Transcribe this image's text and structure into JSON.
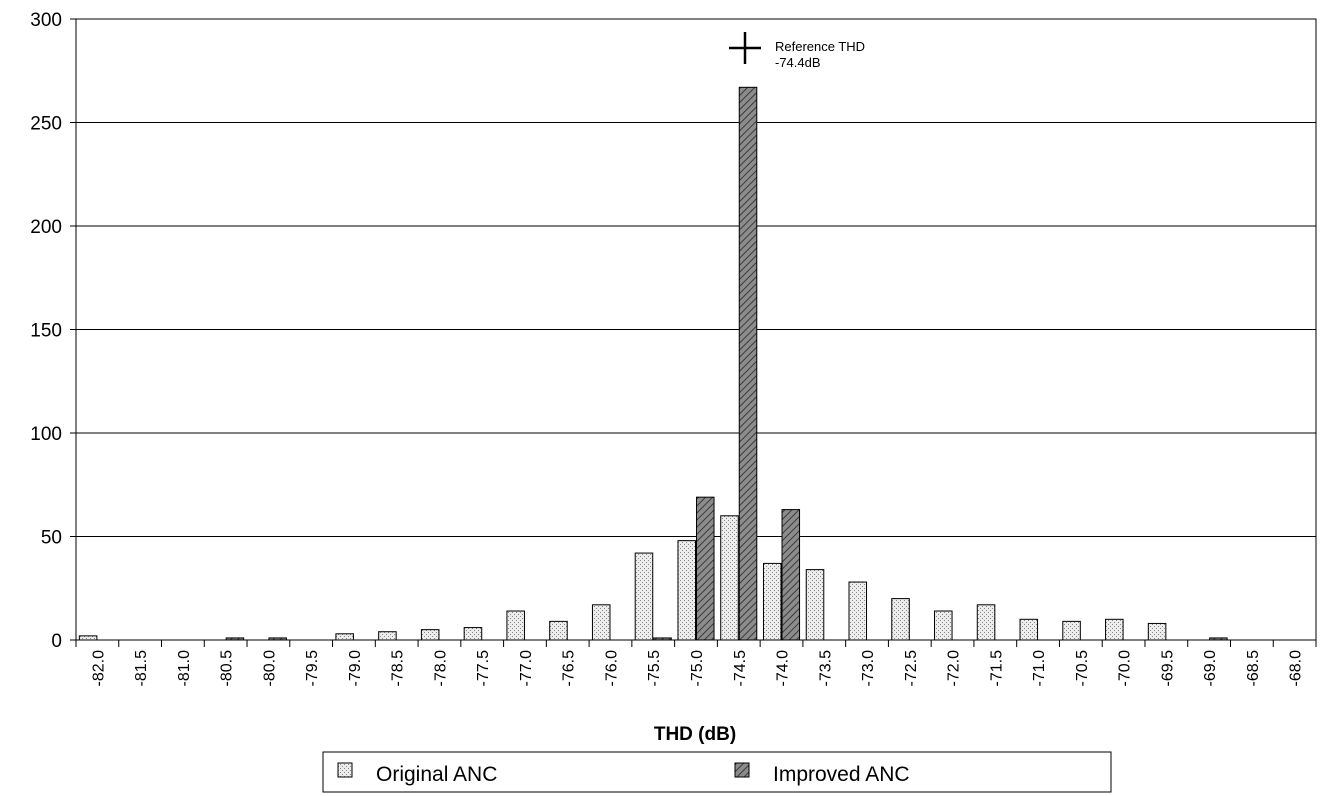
{
  "chart_data": {
    "type": "bar",
    "title": "",
    "xlabel": "THD (dB)",
    "ylabel": "",
    "ylim": [
      0,
      300
    ],
    "yticks": [
      0,
      50,
      100,
      150,
      200,
      250,
      300
    ],
    "grid": "horizontal",
    "legend_position": "bottom",
    "categories": [
      "-82.0",
      "-81.5",
      "-81.0",
      "-80.5",
      "-80.0",
      "-79.5",
      "-79.0",
      "-78.5",
      "-78.0",
      "-77.5",
      "-77.0",
      "-76.5",
      "-76.0",
      "-75.5",
      "-75.0",
      "-74.5",
      "-74.0",
      "-73.5",
      "-73.0",
      "-72.5",
      "-72.0",
      "-71.5",
      "-71.0",
      "-70.5",
      "-70.0",
      "-69.5",
      "-69.0",
      "-68.5",
      "-68.0"
    ],
    "series": [
      {
        "name": "Original ANC",
        "color": "#e4e4e4",
        "pattern": "dots",
        "values": [
          2,
          0,
          0,
          0,
          0,
          0,
          3,
          4,
          5,
          6,
          14,
          9,
          17,
          42,
          48,
          60,
          37,
          34,
          28,
          20,
          14,
          17,
          10,
          9,
          10,
          8,
          0,
          0,
          0
        ]
      },
      {
        "name": "Improved ANC",
        "color": "#7a7a7a",
        "pattern": "hatch",
        "values": [
          0,
          0,
          0,
          1,
          1,
          0,
          0,
          0,
          0,
          0,
          0,
          0,
          0,
          1,
          69,
          267,
          63,
          0,
          0,
          0,
          0,
          0,
          0,
          0,
          0,
          0,
          1,
          0,
          0
        ]
      }
    ],
    "annotation": {
      "marker": "cross",
      "category": "-74.5",
      "y": 284,
      "label_line1": "Reference THD",
      "label_line2": "-74.4dB"
    }
  }
}
